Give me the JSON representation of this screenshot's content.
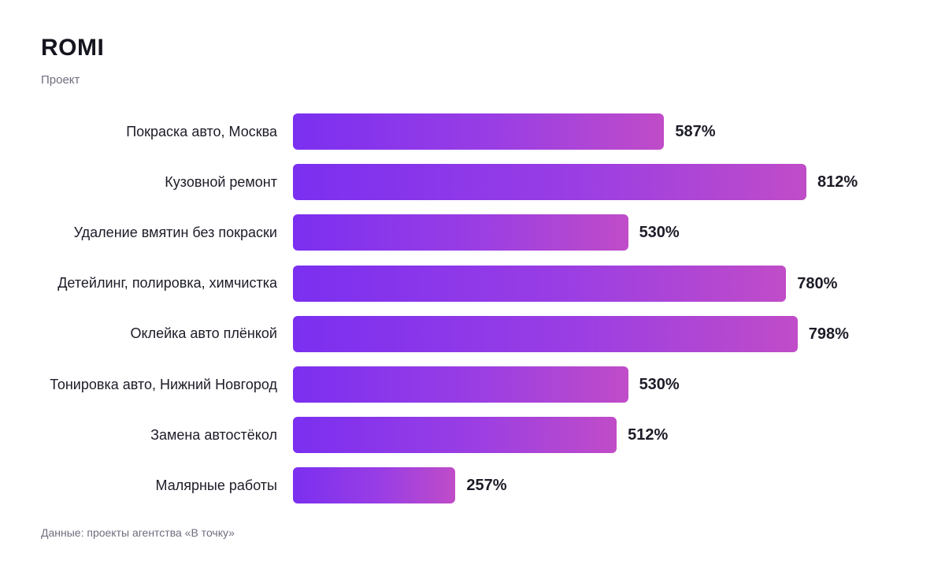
{
  "chart_data": {
    "type": "bar",
    "orientation": "horizontal",
    "title": "ROMI",
    "subtitle": "Проект",
    "categories": [
      "Покраска авто, Москва",
      "Кузовной ремонт",
      "Удаление вмятин без покраски",
      "Детейлинг, полировка, химчистка",
      "Оклейка авто плёнкой",
      "Тонировка авто, Нижний Новгород",
      "Замена автостёкол",
      "Малярные работы"
    ],
    "values": [
      587,
      812,
      530,
      780,
      798,
      530,
      512,
      257
    ],
    "value_labels": [
      "587%",
      "812%",
      "530%",
      "780%",
      "798%",
      "530%",
      "512%",
      "257%"
    ],
    "xlim": [
      0,
      860
    ],
    "grid": false,
    "legend": "none",
    "bar_gradient": [
      "#7b2ff0",
      "#c04cc8"
    ],
    "source": "Данные: проекты агентства «В точку»"
  }
}
